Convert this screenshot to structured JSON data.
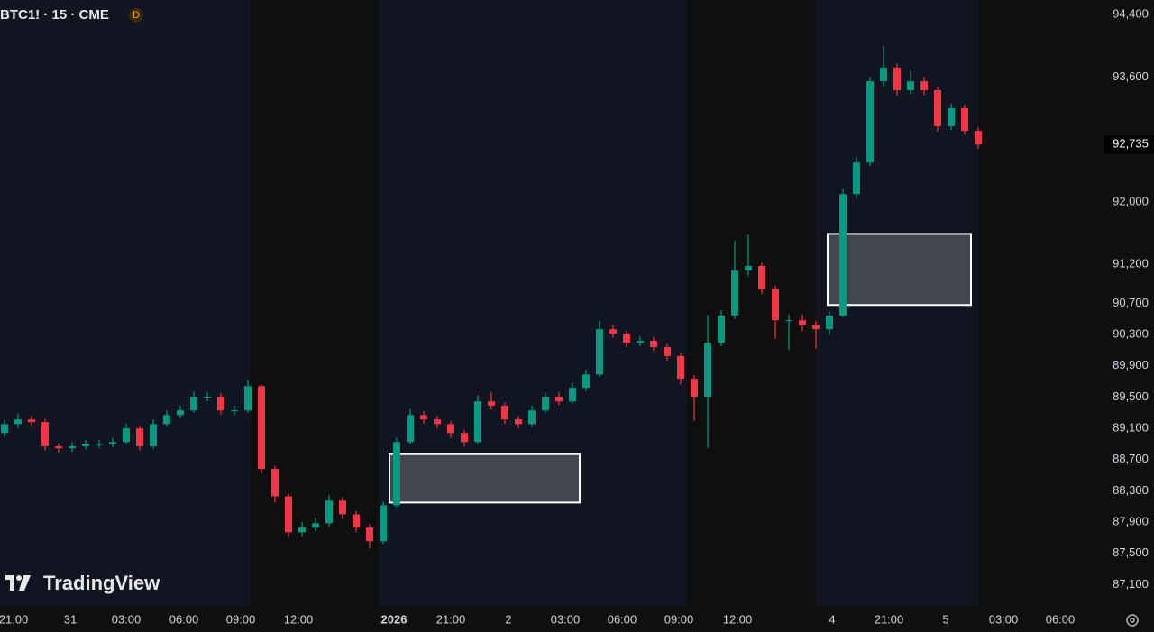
{
  "chart_data": {
    "type": "candlestick",
    "title": "BTC1! · 15 · CME",
    "badge": "D",
    "watermark": "TradingView",
    "up_color": "#089981",
    "down_color": "#f23645",
    "ylim": [
      86850,
      94585
    ],
    "yticks": [
      {
        "value": 94400,
        "label": "94,400"
      },
      {
        "value": 93600,
        "label": "93,600"
      },
      {
        "value": 92000,
        "label": "92,000"
      },
      {
        "value": 91200,
        "label": "91,200"
      },
      {
        "value": 90700,
        "label": "90,700"
      },
      {
        "value": 90300,
        "label": "90,300"
      },
      {
        "value": 89900,
        "label": "89,900"
      },
      {
        "value": 89500,
        "label": "89,500"
      },
      {
        "value": 89100,
        "label": "89,100"
      },
      {
        "value": 88700,
        "label": "88,700"
      },
      {
        "value": 88300,
        "label": "88,300"
      },
      {
        "value": 87900,
        "label": "87,900"
      },
      {
        "value": 87500,
        "label": "87,500"
      },
      {
        "value": 87100,
        "label": "87,100"
      }
    ],
    "last_price": {
      "value": 92735,
      "label": "92,735"
    },
    "xtick_labels": [
      "21:00",
      "31",
      "03:00",
      "06:00",
      "09:00",
      "12:00",
      "2026",
      "21:00",
      "2",
      "03:00",
      "06:00",
      "09:00",
      "12:00",
      "4",
      "21:00",
      "5",
      "03:00",
      "06:00"
    ],
    "zones": [
      {
        "top": 88770,
        "bottom": 88150
      },
      {
        "top": 91590,
        "bottom": 90680
      }
    ],
    "open": [
      89040,
      89155,
      89215,
      89180,
      88870,
      88845,
      88870,
      88900,
      88900,
      88925,
      89100,
      88870,
      89155,
      89270,
      89330,
      89505,
      89505,
      89330,
      89330,
      89640,
      88580,
      88230,
      87770,
      87830,
      87885,
      88175,
      88000,
      87830,
      87655,
      88115,
      88925,
      89270,
      89215,
      89155,
      89040,
      88925,
      89445,
      89390,
      89215,
      89155,
      89330,
      89505,
      89445,
      89620,
      89790,
      90370,
      90310,
      90195,
      90220,
      90140,
      90025,
      89735,
      89505,
      90195,
      90545,
      91120,
      91180,
      90890,
      90485,
      90485,
      90425,
      90370,
      90545,
      92100,
      92505,
      93545,
      93720,
      93430,
      93545,
      93430,
      92970,
      93200,
      92910
    ],
    "high": [
      89210,
      89290,
      89260,
      89220,
      88910,
      88920,
      88950,
      88950,
      88980,
      89160,
      89140,
      89210,
      89330,
      89390,
      89570,
      89560,
      89550,
      89390,
      89720,
      89660,
      88620,
      88260,
      87900,
      87950,
      88250,
      88220,
      88040,
      87870,
      88160,
      88980,
      89350,
      89320,
      89260,
      89190,
      89080,
      89520,
      89560,
      89430,
      89260,
      89390,
      89560,
      89560,
      89680,
      89850,
      90480,
      90420,
      90350,
      90280,
      90270,
      90180,
      90060,
      89780,
      90550,
      90620,
      91500,
      91580,
      91220,
      90930,
      90560,
      90560,
      90480,
      90600,
      92160,
      92580,
      93600,
      94000,
      93770,
      93680,
      93600,
      93470,
      93260,
      93240,
      92960
    ],
    "low": [
      88990,
      89100,
      89130,
      88820,
      88790,
      88800,
      88830,
      88850,
      88860,
      88900,
      88820,
      88840,
      89120,
      89230,
      89300,
      89450,
      89280,
      89270,
      89300,
      88520,
      88150,
      87700,
      87710,
      87780,
      87850,
      87940,
      87770,
      87560,
      87620,
      88090,
      88900,
      89160,
      89100,
      88980,
      88870,
      88900,
      89340,
      89160,
      89100,
      89120,
      89300,
      89400,
      89420,
      89580,
      89760,
      90260,
      90140,
      90150,
      90090,
      89970,
      89660,
      89200,
      88850,
      90150,
      90500,
      91050,
      90820,
      90250,
      90100,
      90350,
      90120,
      90300,
      90520,
      92050,
      92460,
      93480,
      93360,
      93380,
      93370,
      92900,
      92920,
      92860,
      92680
    ],
    "close": [
      89155,
      89215,
      89180,
      88870,
      88845,
      88870,
      88900,
      88900,
      88925,
      89100,
      88870,
      89155,
      89270,
      89330,
      89505,
      89505,
      89330,
      89330,
      89640,
      88580,
      88230,
      87770,
      87830,
      87885,
      88175,
      88000,
      87830,
      87655,
      88115,
      88925,
      89270,
      89215,
      89155,
      89040,
      88925,
      89445,
      89390,
      89215,
      89155,
      89330,
      89505,
      89445,
      89620,
      89790,
      90370,
      90310,
      90195,
      90220,
      90140,
      90025,
      89735,
      89505,
      90195,
      90545,
      91120,
      91180,
      90890,
      90485,
      90485,
      90425,
      90370,
      90545,
      92100,
      92505,
      93545,
      93720,
      93430,
      93545,
      93430,
      92970,
      93200,
      92910,
      92735
    ]
  }
}
